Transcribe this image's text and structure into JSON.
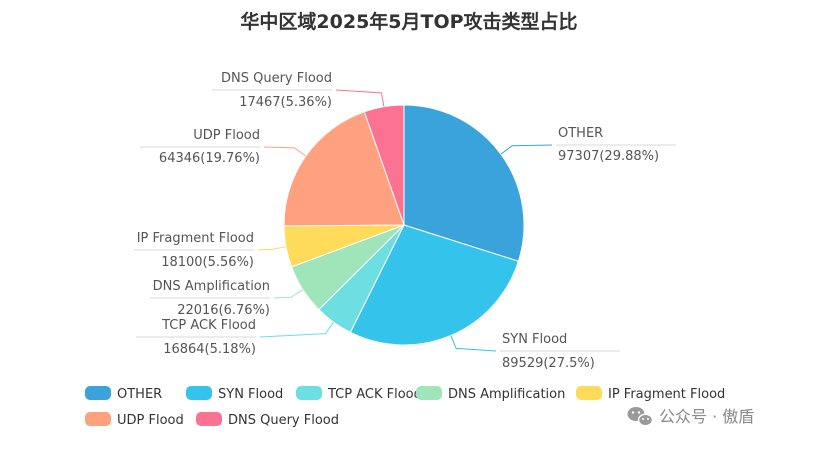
{
  "chart_data": {
    "type": "pie",
    "title": "华中区域2025年5月TOP攻击类型占比",
    "slices": [
      {
        "name": "OTHER",
        "value": 97307,
        "percent": "29.88%",
        "color": "#3ba3db"
      },
      {
        "name": "SYN Flood",
        "value": 89529,
        "percent": "27.5%",
        "color": "#34c3ea"
      },
      {
        "name": "TCP ACK Flood",
        "value": 16864,
        "percent": "5.18%",
        "color": "#6ddfe2"
      },
      {
        "name": "DNS Amplification",
        "value": 22016,
        "percent": "6.76%",
        "color": "#9fe5b9"
      },
      {
        "name": "IP Fragment Flood",
        "value": 18100,
        "percent": "5.56%",
        "color": "#fedb5b"
      },
      {
        "name": "UDP Flood",
        "value": 64346,
        "percent": "19.76%",
        "color": "#ffa07f"
      },
      {
        "name": "DNS Query Flood",
        "value": 17467,
        "percent": "5.36%",
        "color": "#fb7293"
      }
    ],
    "legend_position": "bottom-left"
  },
  "watermark": {
    "text": "公众号 · 傲盾",
    "icon": "wechat-icon"
  }
}
